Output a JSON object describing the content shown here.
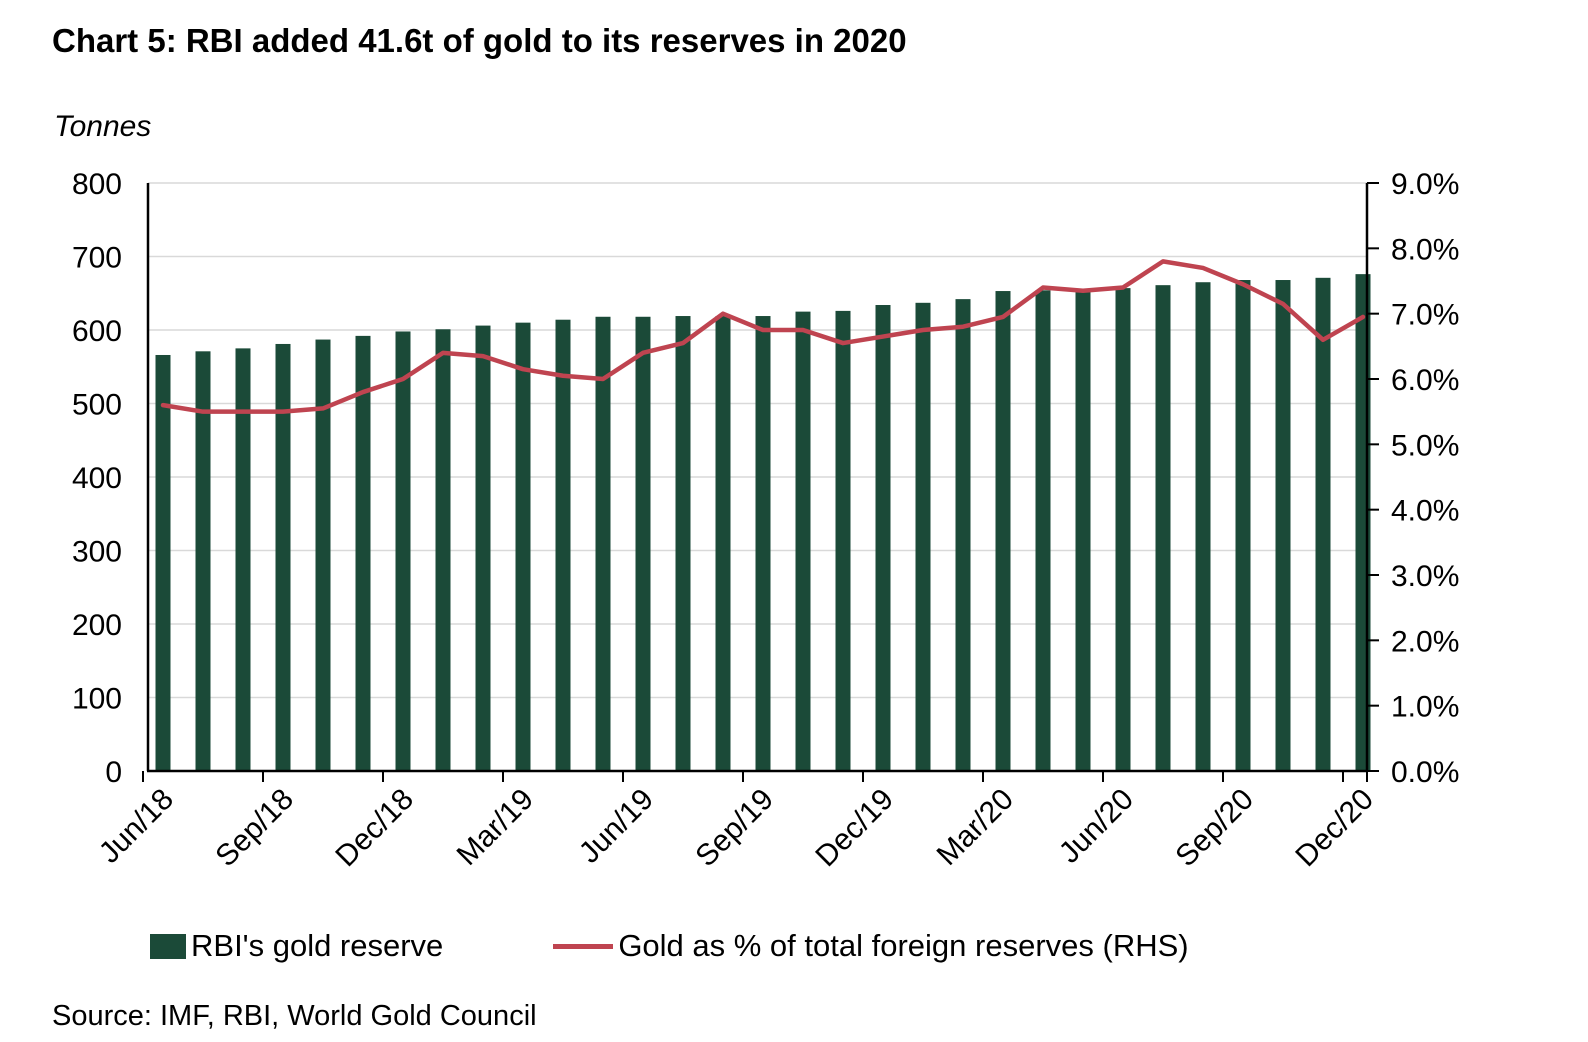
{
  "title": "Chart 5: RBI added 41.6t of gold to its reserves in 2020",
  "axis_unit_label": "Tonnes",
  "source": "Source: IMF, RBI, World Gold Council",
  "legend": [
    {
      "label": "RBI's gold reserve",
      "marker": "bar-swatch"
    },
    {
      "label": "Gold as % of total foreign reserves (RHS)",
      "marker": "line-swatch"
    }
  ],
  "colors": {
    "bar": "#1b4a38",
    "line": "#bf4450",
    "grid": "#d9d9d9",
    "axis": "#000000",
    "background": "#ffffff"
  },
  "chart_data": {
    "type": "bar+line combo",
    "categories": [
      "Jun/18",
      "Jul/18",
      "Aug/18",
      "Sep/18",
      "Oct/18",
      "Nov/18",
      "Dec/18",
      "Jan/19",
      "Feb/19",
      "Mar/19",
      "Apr/19",
      "May/19",
      "Jun/19",
      "Jul/19",
      "Aug/19",
      "Sep/19",
      "Oct/19",
      "Nov/19",
      "Dec/19",
      "Jan/20",
      "Feb/20",
      "Mar/20",
      "Apr/20",
      "May/20",
      "Jun/20",
      "Jul/20",
      "Aug/20",
      "Sep/20",
      "Oct/20",
      "Nov/20",
      "Dec/20"
    ],
    "x_tick_labels": [
      "Jun/18",
      "Sep/18",
      "Dec/18",
      "Mar/19",
      "Jun/19",
      "Sep/19",
      "Dec/19",
      "Mar/20",
      "Jun/20",
      "Sep/20",
      "Dec/20"
    ],
    "x_label_every": 3,
    "series": [
      {
        "name": "RBI's gold reserve",
        "type": "bar",
        "axis": "left",
        "unit": "tonnes",
        "values": [
          566,
          571,
          575,
          581,
          587,
          592,
          598,
          601,
          606,
          610,
          614,
          618,
          618,
          619,
          619,
          619,
          625,
          626,
          634,
          637,
          642,
          653,
          654,
          655,
          657,
          661,
          665,
          668,
          668,
          671,
          676
        ]
      },
      {
        "name": "Gold as % of total foreign reserves (RHS)",
        "type": "line",
        "axis": "right",
        "unit": "percent",
        "values": [
          5.6,
          5.5,
          5.5,
          5.5,
          5.55,
          5.8,
          6.0,
          6.4,
          6.35,
          6.15,
          6.05,
          6.0,
          6.4,
          6.55,
          7.0,
          6.75,
          6.75,
          6.55,
          6.65,
          6.75,
          6.8,
          6.95,
          7.4,
          7.35,
          7.4,
          7.8,
          7.7,
          7.45,
          7.15,
          6.6,
          6.95
        ]
      }
    ],
    "left_axis": {
      "label": "Tonnes",
      "min": 0,
      "max": 800,
      "step": 100,
      "tick_labels": [
        "0",
        "100",
        "200",
        "300",
        "400",
        "500",
        "600",
        "700",
        "800"
      ]
    },
    "right_axis": {
      "min": 0,
      "max": 9,
      "step": 1,
      "tick_labels": [
        "0.0%",
        "1.0%",
        "2.0%",
        "3.0%",
        "4.0%",
        "5.0%",
        "6.0%",
        "7.0%",
        "8.0%",
        "9.0%"
      ]
    },
    "grid": "horizontal",
    "legend_position": "bottom"
  }
}
